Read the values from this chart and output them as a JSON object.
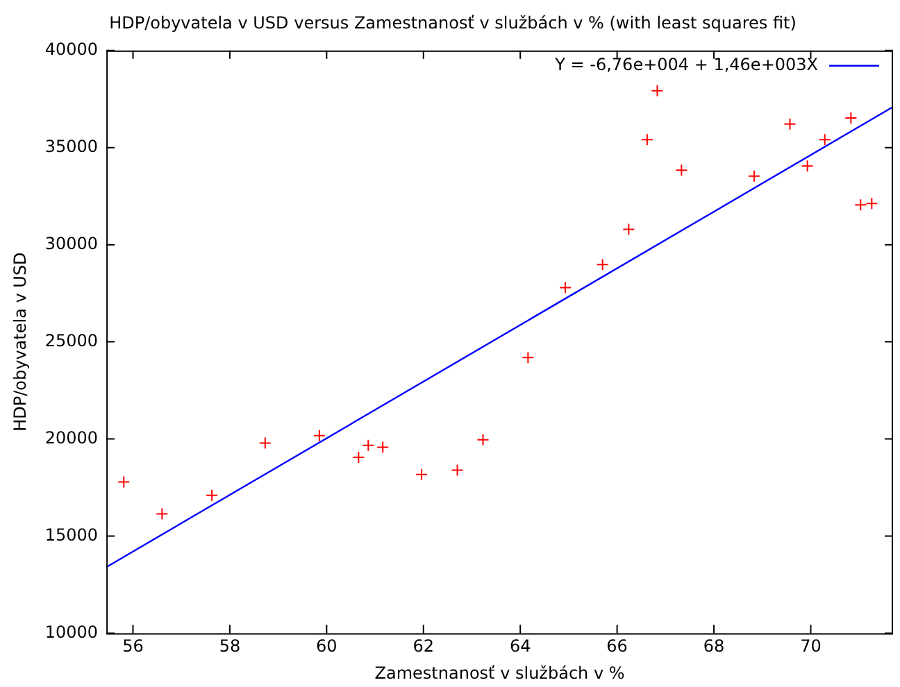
{
  "chart_data": {
    "type": "scatter",
    "title": "HDP/obyvatela v USD versus Zamestnanosť v službách v % (with least squares fit)",
    "xlabel": "Zamestnanosť v službách v %",
    "ylabel": "HDP/obyvatela v USD",
    "xlim": [
      55.45,
      71.7
    ],
    "xticks": [
      56,
      58,
      60,
      62,
      64,
      66,
      68,
      70
    ],
    "ylim": [
      10000,
      40000
    ],
    "yticks": [
      10000,
      15000,
      20000,
      25000,
      30000,
      35000,
      40000
    ],
    "grid": false,
    "legend": "top right",
    "series": [
      {
        "marker": "cross",
        "color": "#ff0000",
        "x": [
          55.81,
          56.6,
          57.63,
          58.73,
          59.85,
          60.66,
          60.86,
          61.16,
          61.96,
          62.7,
          63.23,
          64.16,
          64.93,
          65.7,
          66.24,
          66.62,
          66.83,
          67.33,
          68.83,
          69.57,
          69.93,
          70.29,
          70.83,
          71.03,
          71.26
        ],
        "values": [
          17790,
          16140,
          17100,
          19790,
          20170,
          19050,
          19670,
          19570,
          18170,
          18390,
          19960,
          24190,
          27790,
          28980,
          30790,
          35410,
          37930,
          33840,
          33530,
          36210,
          34050,
          35410,
          36530,
          32050,
          32120
        ]
      },
      {
        "type": "line",
        "name": "Y = -6,76e+004 + 1,46e+003X",
        "color": "#0000ff",
        "marker": "none",
        "x": [
          55.45,
          71.7
        ],
        "values": [
          13400,
          37100
        ]
      }
    ]
  }
}
